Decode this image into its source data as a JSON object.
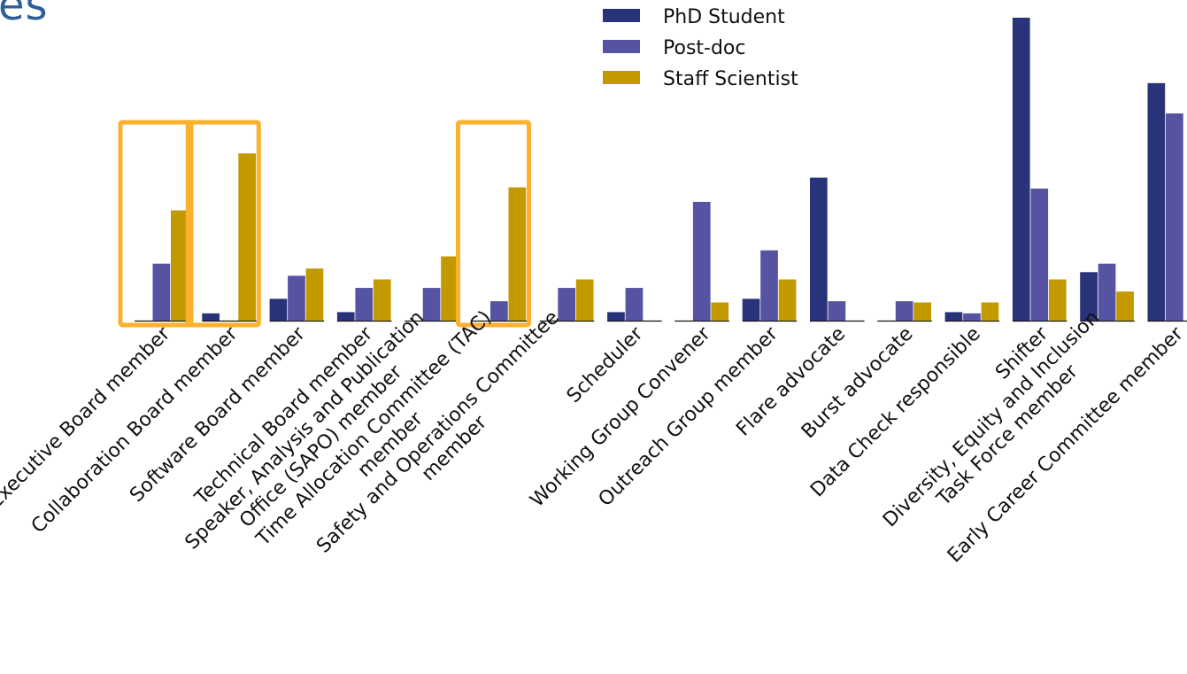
{
  "page": {
    "title_fragment": "es"
  },
  "chart_data": {
    "type": "bar",
    "title": "",
    "xlabel": "",
    "ylabel": "",
    "ylim": [
      0,
      25
    ],
    "grid": false,
    "legend_placement": "top-right",
    "categories": [
      "Executive Board member",
      "Collaboration Board member",
      "Software Board member",
      "Technical Board member",
      "Speaker, Analysis and Publication\nOffice (SAPO) member",
      "Time Allocation Committee (TAC)\nmember",
      "Safety and Operations Committee\nmember",
      "Scheduler",
      "Working Group Convener",
      "Outreach Group member",
      "Flare advocate",
      "Burst advocate",
      "Data Check responsible",
      "Shifter",
      "Diversity, Equity and Inclusion\nTask Force member",
      "Early Career Committee member"
    ],
    "series": [
      {
        "name": "PhD Student",
        "color": "#283379",
        "values": [
          0,
          0.6,
          1.8,
          0.7,
          0,
          0,
          0,
          0.7,
          0,
          1.8,
          11.8,
          0,
          0.7,
          25,
          4.0,
          19.6
        ]
      },
      {
        "name": "Post-doc",
        "color": "#5553a2",
        "values": [
          4.7,
          0,
          3.7,
          2.7,
          2.7,
          1.6,
          2.7,
          2.7,
          9.8,
          5.8,
          1.6,
          1.6,
          0.6,
          10.9,
          4.7,
          17.1
        ]
      },
      {
        "name": "Staff Scientist",
        "color": "#c29a00",
        "values": [
          9.1,
          13.8,
          4.3,
          3.4,
          5.3,
          11.0,
          3.4,
          0,
          1.5,
          3.4,
          0,
          1.5,
          1.5,
          3.4,
          2.4,
          0
        ]
      }
    ],
    "highlight_boxes": [
      {
        "categories": [
          "Executive Board member"
        ],
        "color": "#fbb12d"
      },
      {
        "categories": [
          "Collaboration Board member"
        ],
        "color": "#fbb12d"
      },
      {
        "categories": [
          "Time Allocation Committee (TAC)\nmember"
        ],
        "color": "#fbb12d"
      }
    ]
  }
}
